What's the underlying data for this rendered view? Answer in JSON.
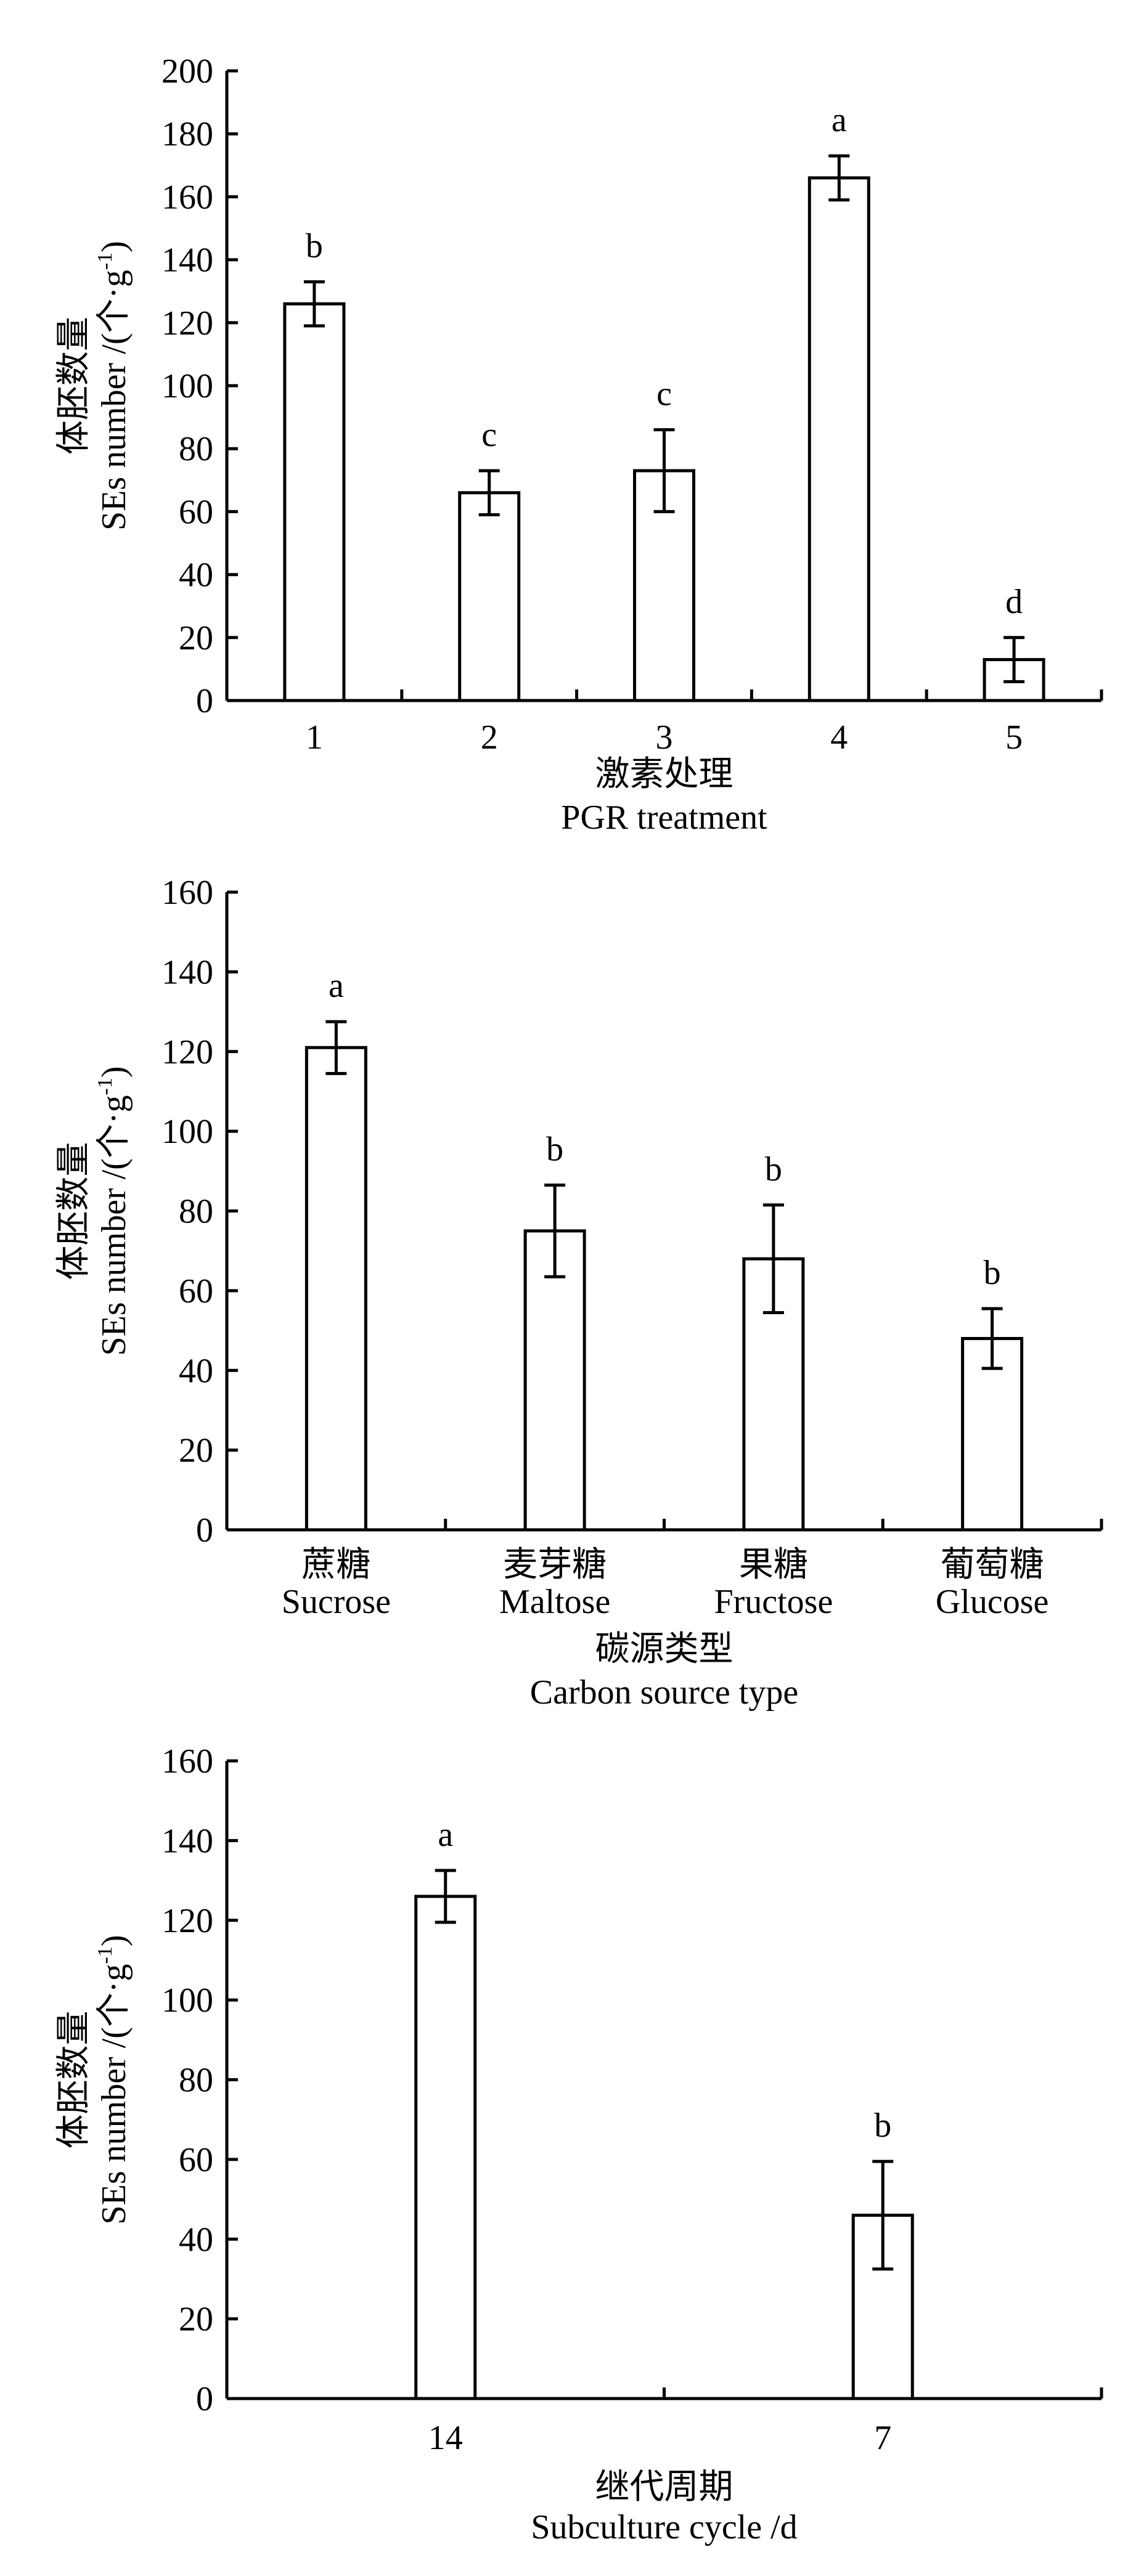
{
  "chart_data": [
    {
      "type": "bar",
      "ylabel_zh": "体胚数量",
      "ylabel_en": "SEs number /(个·g",
      "ylabel_sup": "-1",
      "ylabel_close": ")",
      "xlabel_zh": "激素处理",
      "xlabel_en": "PGR treatment",
      "ylim": [
        0,
        200
      ],
      "yticks": [
        "0",
        "20",
        "40",
        "60",
        "80",
        "100",
        "120",
        "140",
        "160",
        "180",
        "200"
      ],
      "categories": [
        {
          "zh": "1",
          "en": ""
        },
        {
          "zh": "2",
          "en": ""
        },
        {
          "zh": "3",
          "en": ""
        },
        {
          "zh": "4",
          "en": ""
        },
        {
          "zh": "5",
          "en": ""
        }
      ],
      "values": [
        126,
        66,
        73,
        166,
        13
      ],
      "errors": [
        7,
        7,
        13,
        7,
        7
      ],
      "letters": [
        "b",
        "c",
        "c",
        "a",
        "d"
      ],
      "ylabel": "SEs number /(个·g-1)",
      "xlabel": "PGR treatment"
    },
    {
      "type": "bar",
      "ylabel_zh": "体胚数量",
      "ylabel_en": "SEs number /(个·g",
      "ylabel_sup": "-1",
      "ylabel_close": ")",
      "xlabel_zh": "碳源类型",
      "xlabel_en": "Carbon source type",
      "ylim": [
        0,
        160
      ],
      "yticks": [
        "0",
        "20",
        "40",
        "60",
        "80",
        "100",
        "120",
        "140",
        "160"
      ],
      "categories": [
        {
          "zh": "蔗糖",
          "en": "Sucrose"
        },
        {
          "zh": "麦芽糖",
          "en": "Maltose"
        },
        {
          "zh": "果糖",
          "en": "Fructose"
        },
        {
          "zh": "葡萄糖",
          "en": "Glucose"
        }
      ],
      "values": [
        121,
        75,
        68,
        48
      ],
      "errors": [
        6.5,
        11.5,
        13.5,
        7.5
      ],
      "letters": [
        "a",
        "b",
        "b",
        "b"
      ],
      "ylabel": "SEs number /(个·g-1)",
      "xlabel": "Carbon source type"
    },
    {
      "type": "bar",
      "ylabel_zh": "体胚数量",
      "ylabel_en": "SEs number /(个·g",
      "ylabel_sup": "-1",
      "ylabel_close": ")",
      "xlabel_zh": "继代周期",
      "xlabel_en": "Subculture cycle /d",
      "ylim": [
        0,
        160
      ],
      "yticks": [
        "0",
        "20",
        "40",
        "60",
        "80",
        "100",
        "120",
        "140",
        "160"
      ],
      "categories": [
        {
          "zh": "14",
          "en": ""
        },
        {
          "zh": "7",
          "en": ""
        }
      ],
      "values": [
        126,
        46
      ],
      "errors": [
        6.5,
        13.5
      ],
      "letters": [
        "a",
        "b"
      ],
      "ylabel": "SEs number /(个·g-1)",
      "xlabel": "Subculture cycle /d"
    }
  ]
}
